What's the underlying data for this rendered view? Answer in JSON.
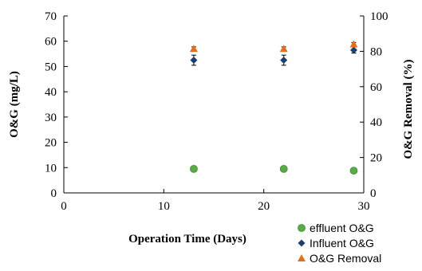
{
  "chart_data": {
    "type": "scatter",
    "xlabel": "Operation Time (Days)",
    "ylabel": "O&G (mg/L)",
    "y2label": "O&G Removal (%)",
    "xlim": [
      0,
      30
    ],
    "ylim": [
      0,
      70
    ],
    "y2lim": [
      0,
      100
    ],
    "x_ticks": [
      0,
      10,
      20,
      30
    ],
    "y_ticks": [
      0,
      10,
      20,
      30,
      40,
      50,
      60,
      70
    ],
    "y2_ticks": [
      0,
      20,
      40,
      60,
      80,
      100
    ],
    "grid": false,
    "legend_position": "bottom-right",
    "series": [
      {
        "name": "effluent O&G",
        "axis": "left",
        "marker": "circle",
        "color": "#5aab46",
        "x": [
          13,
          22,
          29
        ],
        "y": [
          9.5,
          9.5,
          8.8
        ]
      },
      {
        "name": "Influent O&G",
        "axis": "left",
        "marker": "diamond",
        "color": "#1f3d6b",
        "x": [
          13,
          22,
          29
        ],
        "y": [
          52.5,
          52.5,
          56.5
        ],
        "error": [
          2,
          2,
          1.2
        ]
      },
      {
        "name": "O&G Removal",
        "axis": "right",
        "marker": "triangle",
        "color": "#e07020",
        "x": [
          13,
          22,
          29
        ],
        "y": [
          81.5,
          81.5,
          84
        ],
        "error": [
          1,
          1,
          1
        ]
      }
    ]
  }
}
